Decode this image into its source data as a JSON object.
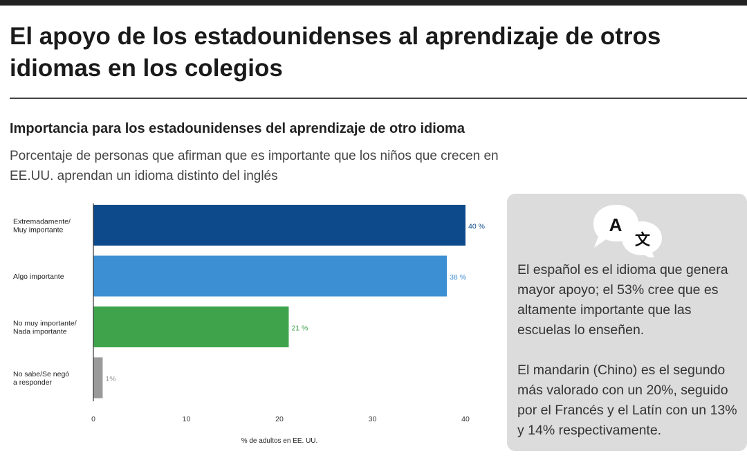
{
  "page": {
    "title": "El apoyo de los estadounidenses al aprendizaje de otros idiomas en los colegios",
    "subtitle": "Importancia para los estadounidenses del aprendizaje de otro idioma",
    "description": "Porcentaje de personas que afirman que es importante que los niños que crecen en EE.UU. aprendan un idioma distinto del inglés"
  },
  "chart_data": {
    "type": "bar",
    "orientation": "horizontal",
    "categories": [
      [
        "Extremadamente/",
        "Muy importante"
      ],
      [
        "Algo importante"
      ],
      [
        "No muy importante/",
        "Nada importante"
      ],
      [
        "No sabe/Se negó",
        "a responder"
      ]
    ],
    "values": [
      40,
      38,
      21,
      1
    ],
    "value_labels": [
      "40 %",
      "38 %",
      "21 %",
      "1%"
    ],
    "colors": [
      "#0d4a8b",
      "#3d8fd3",
      "#3ea34a",
      "#9a9a9a"
    ],
    "xlabel": "% de adultos en EE. UU.",
    "xlim": [
      0,
      40
    ],
    "xticks": [
      0,
      10,
      20,
      30,
      40
    ],
    "grid": false
  },
  "callout": {
    "icon_glyphs": [
      "A",
      "文"
    ],
    "icon": "translate-speech-bubbles-icon",
    "paragraphs": [
      "El español es el idioma que genera mayor apoyo; el 53% cree que es altamente importante que las escuelas lo enseñen.",
      "El mandarin (Chino) es el segundo más valorado con un 20%, seguido por el Francés y el Latín con un 13% y 14% respectivamente."
    ]
  }
}
